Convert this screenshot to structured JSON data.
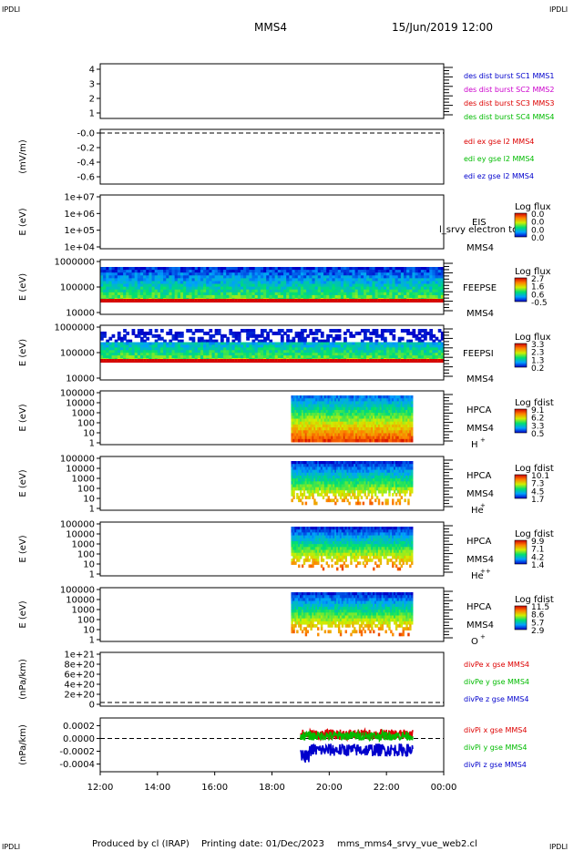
{
  "header": {
    "corner_tl": "IPDLI",
    "corner_tr": "IPDLI",
    "title": "MMS4",
    "datetime": "15/Jun/2019 12:00"
  },
  "footer": {
    "corner_bl": "IPDLI",
    "corner_br": "IPDLI",
    "produced_by": "Produced by cl (IRAP)",
    "printing_date": "Printing date: 01/Dec/2023",
    "filename": "mms_mms4_srvy_vue_web2.cl"
  },
  "colors": {
    "mms1": "#0000cc",
    "mms2": "#cc00cc",
    "mms3": "#dd0000",
    "mms4": "#00bb00",
    "ex": "#dd0000",
    "ey": "#00bb00",
    "ez": "#0000cc"
  },
  "chart_data": {
    "type": "heatmap",
    "x_axis": {
      "ticks": [
        "12:00",
        "14:00",
        "16:00",
        "18:00",
        "20:00",
        "22:00",
        "00:00"
      ],
      "range": [
        "12:00",
        "00:00"
      ]
    },
    "panels": [
      {
        "id": "dist",
        "yticks": [
          "4",
          "3",
          "2",
          "1"
        ],
        "ylabel": "",
        "legend": [
          {
            "text": "des dist burst SC1 MMS1",
            "color": "#0000cc"
          },
          {
            "text": "des dist burst SC2 MMS2",
            "color": "#cc00cc"
          },
          {
            "text": "des dist burst SC3 MMS3",
            "color": "#dd0000"
          },
          {
            "text": "des dist burst SC4 MMS4",
            "color": "#00bb00"
          }
        ]
      },
      {
        "id": "edi",
        "type": "line",
        "ylabel": "(mV/m)",
        "yticks": [
          "-0.0",
          "-0.2",
          "-0.4",
          "-0.6"
        ],
        "ylim": [
          -0.65,
          0.0
        ],
        "legend": [
          {
            "text": "edi ex gse l2 MMS4",
            "color": "#dd0000"
          },
          {
            "text": "edi ey gse l2 MMS4",
            "color": "#00bb00"
          },
          {
            "text": "edi ez gse l2 MMS4",
            "color": "#0000cc"
          }
        ]
      },
      {
        "id": "eis",
        "ylabel": "E (eV)",
        "yticks": [
          "1e+07",
          "1e+06",
          "1e+05",
          "1e+04"
        ],
        "ylim": [
          10000,
          10000000
        ],
        "log": true,
        "instrument": "EIS",
        "overlay": "l_srvy electron to",
        "sc": "MMS4",
        "colorbar": {
          "title": "Log flux",
          "ticks": [
            "0.0",
            "0.0",
            "0.0",
            "0.0"
          ]
        }
      },
      {
        "id": "feepse",
        "ylabel": "E (eV)",
        "yticks": [
          "1000000",
          "100000",
          "10000"
        ],
        "ylim": [
          10000,
          1000000
        ],
        "log": true,
        "instrument": "FEEPSE",
        "sc": "MMS4",
        "colorbar": {
          "title": "Log flux",
          "ticks": [
            "2.7",
            "1.6",
            "0.6",
            "-0.5"
          ]
        },
        "data_start": "12:00",
        "data_end": "00:00"
      },
      {
        "id": "feepsi",
        "ylabel": "E (eV)",
        "yticks": [
          "1000000",
          "100000",
          "10000"
        ],
        "ylim": [
          10000,
          1000000
        ],
        "log": true,
        "instrument": "FEEPSI",
        "sc": "MMS4",
        "colorbar": {
          "title": "Log flux",
          "ticks": [
            "3.3",
            "2.3",
            "1.3",
            "0.2"
          ]
        },
        "data_start": "12:00",
        "data_end": "00:00"
      },
      {
        "id": "hpca_h",
        "ylabel": "E (eV)",
        "yticks": [
          "100000",
          "10000",
          "1000",
          "100",
          "10",
          "1"
        ],
        "ylim": [
          1,
          100000
        ],
        "log": true,
        "instrument": "HPCA",
        "sc": "MMS4",
        "species": "H",
        "charge": "+",
        "colorbar": {
          "title": "Log fdist",
          "ticks": [
            "9.1",
            "6.2",
            "3.3",
            "0.5"
          ]
        },
        "data_start": "18:40",
        "data_end": "22:55"
      },
      {
        "id": "hpca_he",
        "ylabel": "E (eV)",
        "yticks": [
          "100000",
          "10000",
          "1000",
          "100",
          "10",
          "1"
        ],
        "ylim": [
          1,
          100000
        ],
        "log": true,
        "instrument": "HPCA",
        "sc": "MMS4",
        "species": "He",
        "charge": "+",
        "colorbar": {
          "title": "Log fdist",
          "ticks": [
            "10.1",
            "7.3",
            "4.5",
            "1.7"
          ]
        },
        "data_start": "18:40",
        "data_end": "22:55"
      },
      {
        "id": "hpca_he2",
        "ylabel": "E (eV)",
        "yticks": [
          "100000",
          "10000",
          "1000",
          "100",
          "10",
          "1"
        ],
        "ylim": [
          1,
          100000
        ],
        "log": true,
        "instrument": "HPCA",
        "sc": "MMS4",
        "species": "He",
        "charge": "++",
        "colorbar": {
          "title": "Log fdist",
          "ticks": [
            "9.9",
            "7.1",
            "4.2",
            "1.4"
          ]
        },
        "data_start": "18:40",
        "data_end": "22:55"
      },
      {
        "id": "hpca_o",
        "ylabel": "E (eV)",
        "yticks": [
          "100000",
          "10000",
          "1000",
          "100",
          "10",
          "1"
        ],
        "ylim": [
          1,
          100000
        ],
        "log": true,
        "instrument": "HPCA",
        "sc": "MMS4",
        "species": "O",
        "charge": "+",
        "colorbar": {
          "title": "Log fdist",
          "ticks": [
            "11.5",
            "8.6",
            "5.7",
            "2.9"
          ]
        },
        "data_start": "18:40",
        "data_end": "22:55"
      },
      {
        "id": "divpe",
        "type": "line",
        "ylabel": "(nPa/km)",
        "yticks": [
          "1e+21",
          "8e+20",
          "6e+20",
          "4e+20",
          "2e+20",
          "0"
        ],
        "ylim": [
          0,
          1.1e+21
        ],
        "legend": [
          {
            "text": "divPe x gse MMS4",
            "color": "#dd0000"
          },
          {
            "text": "divPe y gse MMS4",
            "color": "#00bb00"
          },
          {
            "text": "divPe z gse MMS4",
            "color": "#0000cc"
          }
        ]
      },
      {
        "id": "divpi",
        "type": "line",
        "ylabel": "(nPa/km)",
        "yticks": [
          "0.0002",
          "0.0000",
          "-0.0002",
          "-0.0004"
        ],
        "ylim": [
          -0.00052,
          0.00032
        ],
        "data_start": "19:00",
        "data_end": "22:55",
        "legend": [
          {
            "text": "divPi x gse MMS4",
            "color": "#dd0000"
          },
          {
            "text": "divPi y gse MMS4",
            "color": "#00bb00"
          },
          {
            "text": "divPi z gse MMS4",
            "color": "#0000cc"
          }
        ],
        "series_approx": [
          {
            "name": "divPi x gse MMS4",
            "mean": 6e-05,
            "spread": 8e-05
          },
          {
            "name": "divPi y gse MMS4",
            "mean": 4e-05,
            "spread": 7e-05
          },
          {
            "name": "divPi z gse MMS4",
            "mean": -0.00018,
            "spread": 0.0001
          }
        ]
      }
    ]
  }
}
